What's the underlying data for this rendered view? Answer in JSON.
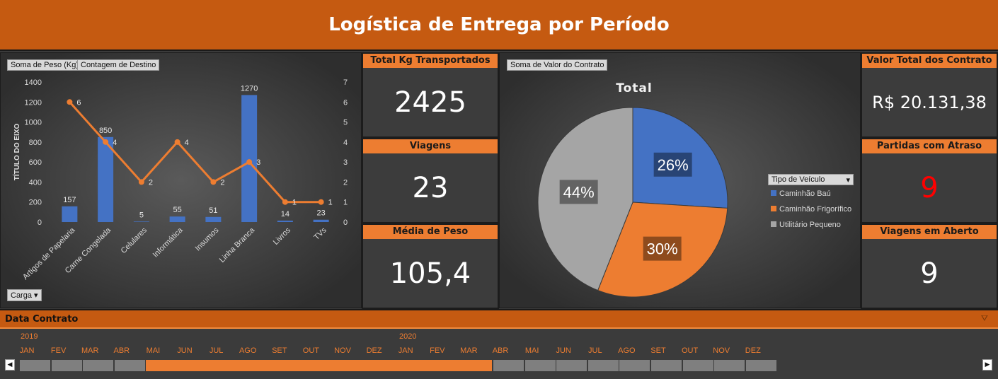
{
  "header": {
    "title": "Logística de Entrega por Período"
  },
  "combo_chart": {
    "field_buttons": [
      "Soma de Peso (Kg)",
      "Contagem de Destino"
    ],
    "filter_button": "Carga",
    "y_axis_title": "TÍTULO DO EIXO",
    "y_left_ticks": [
      "0",
      "200",
      "400",
      "600",
      "800",
      "1000",
      "1200",
      "1400"
    ],
    "y_right_ticks": [
      "0",
      "1",
      "2",
      "3",
      "4",
      "5",
      "6",
      "7"
    ]
  },
  "chart_data": {
    "type": "bar",
    "categories": [
      "Artigos de Papelaria",
      "Carne Congelada",
      "Celulares",
      "Informática",
      "Insumos",
      "Linha Branca",
      "Livros",
      "TVs"
    ],
    "series": [
      {
        "name": "Soma de Peso (Kg)",
        "type": "bar",
        "axis": "left",
        "values": [
          157,
          850,
          5,
          55,
          51,
          1270,
          14,
          23
        ]
      },
      {
        "name": "Contagem de Destino",
        "type": "line",
        "axis": "right",
        "values": [
          6,
          4,
          2,
          4,
          2,
          3,
          1,
          1
        ]
      }
    ],
    "ylabel": "TÍTULO DO EIXO",
    "ylim_left": [
      0,
      1400
    ],
    "ylim_right": [
      0,
      7
    ],
    "colors": {
      "bar": "#4472c4",
      "line": "#ed7d31"
    },
    "grid": false
  },
  "kpis_left": [
    {
      "title": "Total Kg Transportados",
      "value": "2425"
    },
    {
      "title": "Viagens",
      "value": "23"
    },
    {
      "title": "Média de Peso",
      "value": "105,4"
    }
  ],
  "pie": {
    "field_button": "Soma de Valor do Contrato",
    "title": "Total",
    "legend_filter": "Tipo de Veículo",
    "slices": [
      {
        "name": "Caminhão Baú",
        "percent": 26,
        "label": "26%",
        "color": "#4472c4"
      },
      {
        "name": "Caminhão Frigorífico",
        "percent": 30,
        "label": "30%",
        "color": "#ed7d31"
      },
      {
        "name": "Utilitário Pequeno",
        "percent": 44,
        "label": "44%",
        "color": "#a5a5a5"
      }
    ]
  },
  "kpis_right": [
    {
      "title": "Valor Total dos Contrato",
      "value": "R$ 20.131,38",
      "color": "#ffffff"
    },
    {
      "title": "Partidas com Atraso",
      "value": "9",
      "color": "#ff0000"
    },
    {
      "title": "Viagens em Aberto",
      "value": "9",
      "color": "#ffffff"
    }
  ],
  "timeline": {
    "label": "Data Contrato",
    "years": [
      "2019",
      "2020"
    ],
    "months": [
      "JAN",
      "FEV",
      "MAR",
      "ABR",
      "MAI",
      "JUN",
      "JUL",
      "AGO",
      "SET",
      "OUT",
      "NOV",
      "DEZ",
      "JAN",
      "FEV",
      "MAR",
      "ABR",
      "MAI",
      "JUN",
      "JUL",
      "AGO",
      "SET",
      "OUT",
      "NOV",
      "DEZ"
    ],
    "selected_start": "MAI 2019",
    "selected_end": "MAR 2020",
    "colors": {
      "selected": "#ed7d31",
      "unselected": "#7f7f7f"
    }
  }
}
